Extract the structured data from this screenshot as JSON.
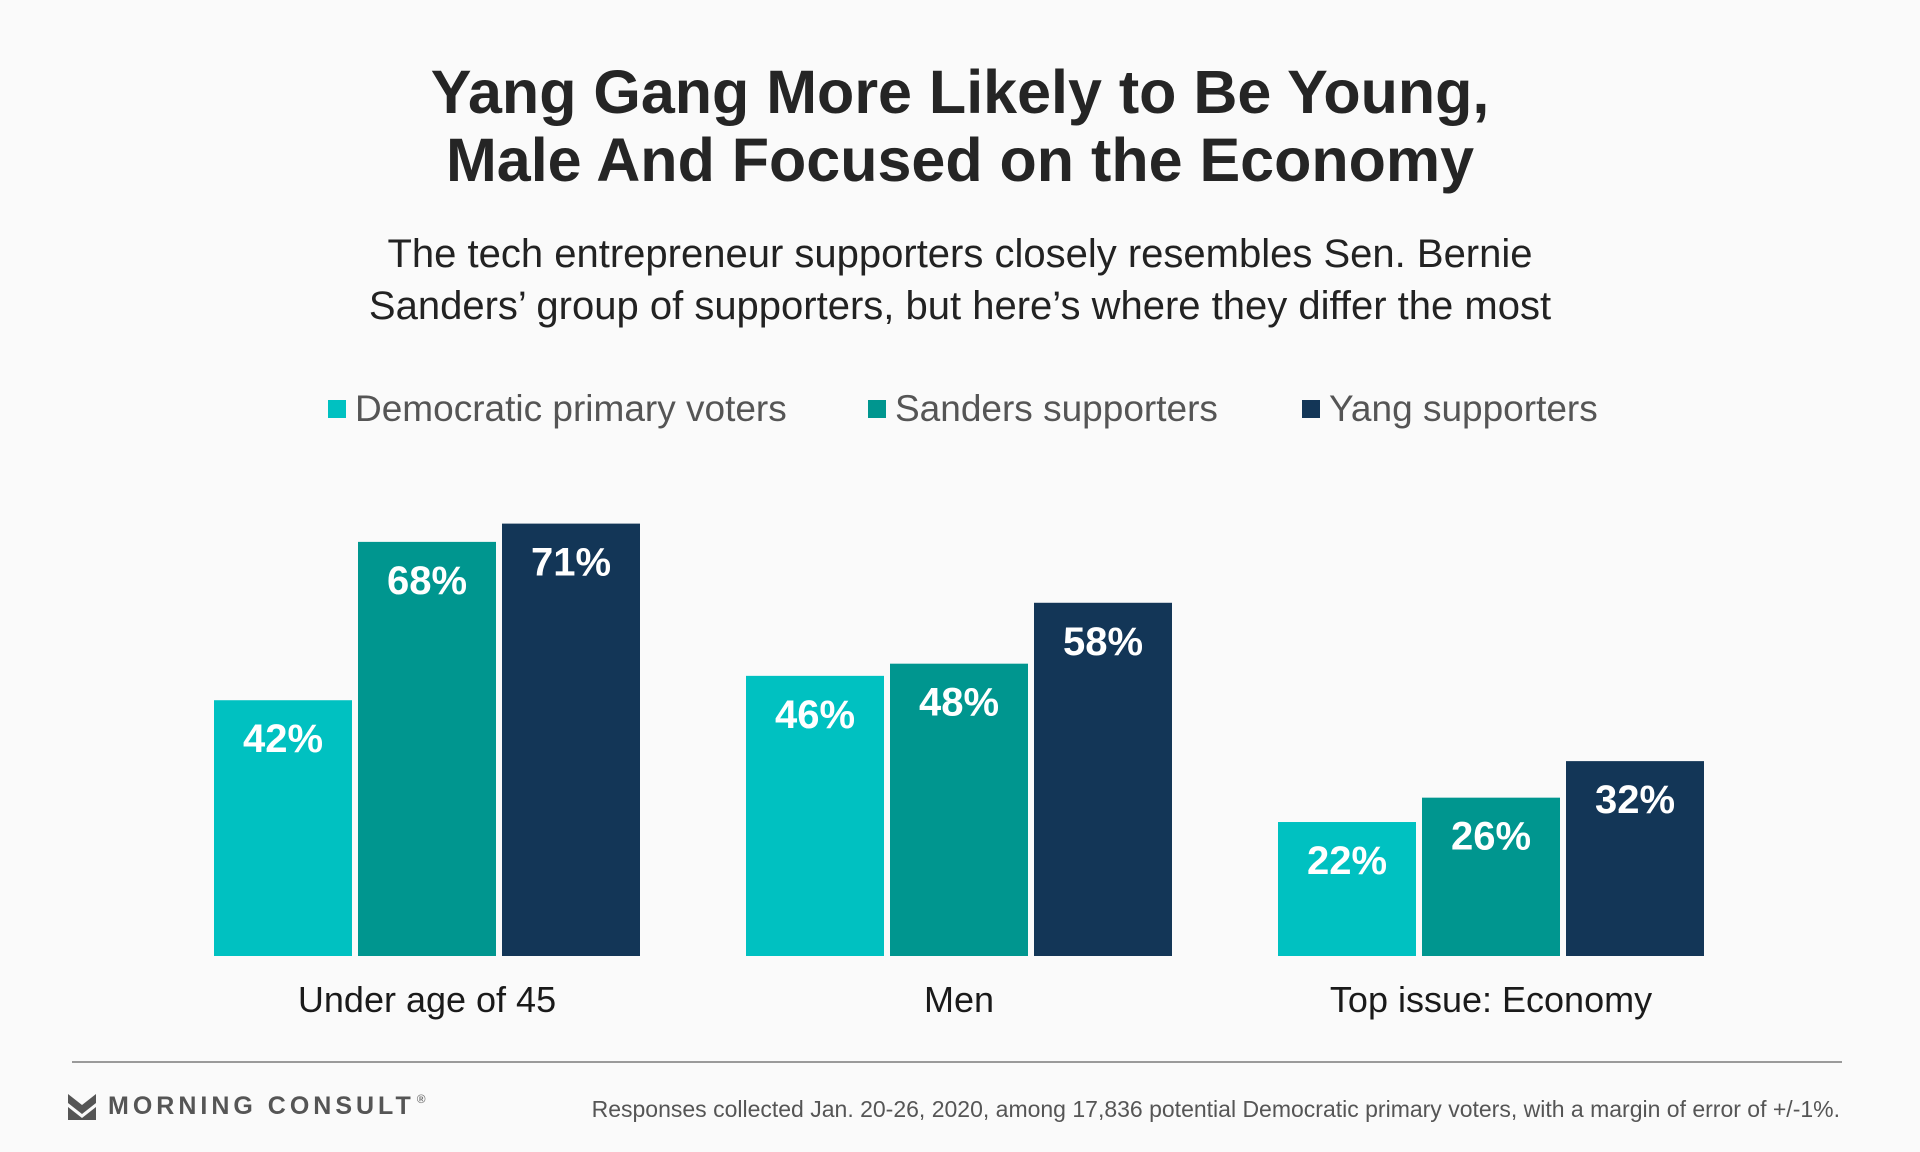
{
  "colors": {
    "democratic": "#00c1c1",
    "sanders": "#00968f",
    "yang": "#133657",
    "background": "#fafafa"
  },
  "header": {
    "title_line1": "Yang Gang More Likely to Be Young,",
    "title_line2": "Male And Focused on the Economy",
    "subtitle_line1": "The tech entrepreneur supporters closely resembles Sen. Bernie",
    "subtitle_line2": "Sanders’ group of supporters, but here’s where they differ the most"
  },
  "chart_data": {
    "type": "bar",
    "title": "Yang Gang More Likely to Be Young, Male And Focused on the Economy",
    "subtitle": "The tech entrepreneur supporters closely resembles Sen. Bernie Sanders’ group of supporters, but here’s where they differ the most",
    "categories": [
      "Under age of 45",
      "Men",
      "Top issue: Economy"
    ],
    "series": [
      {
        "name": "Democratic primary voters",
        "values": [
          42,
          46,
          22
        ],
        "labels": [
          "42%",
          "46%",
          "22%"
        ],
        "color": "#00c1c1"
      },
      {
        "name": "Sanders supporters",
        "values": [
          68,
          48,
          26
        ],
        "labels": [
          "68%",
          "48%",
          "26%"
        ],
        "color": "#00968f"
      },
      {
        "name": "Yang supporters",
        "values": [
          71,
          58,
          32
        ],
        "labels": [
          "71%",
          "58%",
          "32%"
        ],
        "color": "#133657"
      }
    ],
    "ylim": [
      0,
      100
    ],
    "grid": false,
    "legend_placement": "top-center"
  },
  "footer": {
    "brand": "MORNING CONSULT",
    "brand_mark": "®",
    "note": "Responses collected Jan. 20-26, 2020, among 17,836 potential Democratic primary voters, with a margin of error of +/-1%."
  }
}
